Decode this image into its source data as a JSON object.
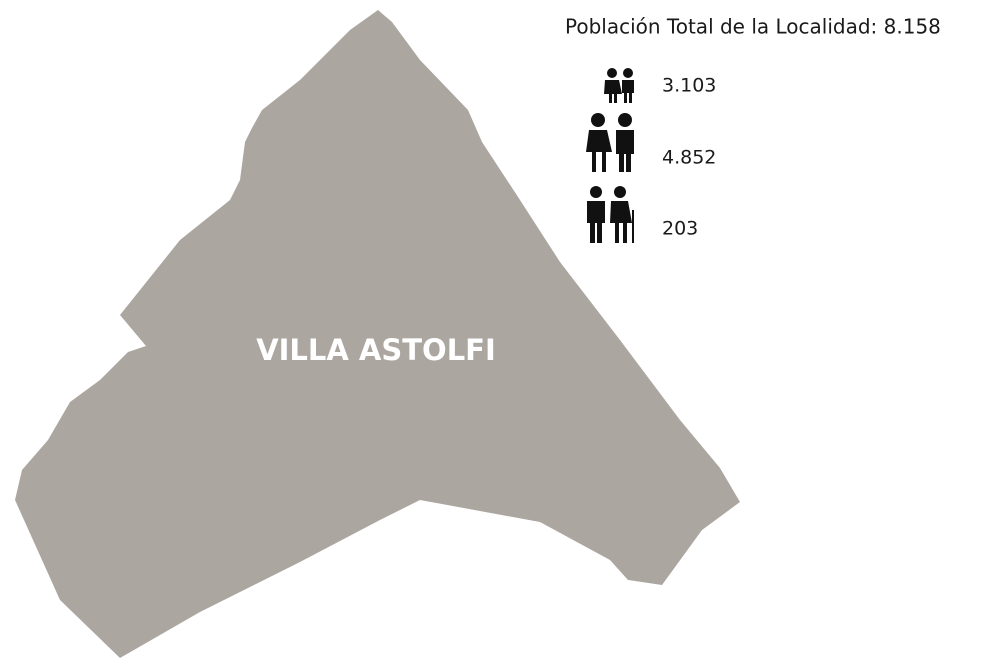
{
  "title": "Población Total de la Localidad: 8.158",
  "region": {
    "label": "VILLA ASTOLFI"
  },
  "groups": [
    {
      "value": "3.103"
    },
    {
      "value": "4.852"
    },
    {
      "value": "203"
    }
  ]
}
